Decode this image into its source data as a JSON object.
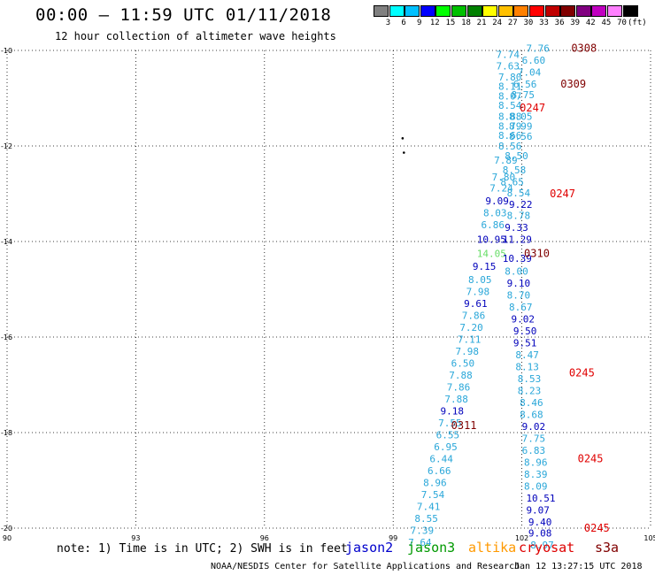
{
  "header": {
    "title": "00:00 – 11:59 UTC 01/11/2018",
    "subtitle": "12 hour collection of altimeter wave heights"
  },
  "legend": {
    "unit_label": "(ft)",
    "bins": [
      {
        "label": "3",
        "color": "#808080"
      },
      {
        "label": "6",
        "color": "#00ffff"
      },
      {
        "label": "9",
        "color": "#00c0ff"
      },
      {
        "label": "12",
        "color": "#0000ff"
      },
      {
        "label": "15",
        "color": "#00ff00"
      },
      {
        "label": "18",
        "color": "#00c000"
      },
      {
        "label": "21",
        "color": "#008000"
      },
      {
        "label": "24",
        "color": "#ffff00"
      },
      {
        "label": "27",
        "color": "#ffc000"
      },
      {
        "label": "30",
        "color": "#ff8000"
      },
      {
        "label": "33",
        "color": "#ff0000"
      },
      {
        "label": "36",
        "color": "#c00000"
      },
      {
        "label": "39",
        "color": "#800000"
      },
      {
        "label": "42",
        "color": "#800080"
      },
      {
        "label": "45",
        "color": "#c000c0"
      },
      {
        "label": "70",
        "color": "#ff80ff"
      },
      {
        "label": "",
        "color": "#000000"
      }
    ]
  },
  "footer": {
    "note": "note: 1) Time is in UTC; 2) SWH is in feet",
    "satellites": [
      {
        "name": "jason2",
        "color": "#0000cc"
      },
      {
        "name": "jason3",
        "color": "#009900"
      },
      {
        "name": "altika",
        "color": "#ff9900"
      },
      {
        "name": "cryosat",
        "color": "#dd0000"
      },
      {
        "name": "s3a",
        "color": "#800000"
      }
    ],
    "credit": "NOAA/NESDIS Center for Satellite Applications and Research",
    "timestamp": "Jan 12 13:27:15 UTC 2018"
  },
  "chart_data": {
    "type": "scatter",
    "xlim": [
      90,
      105
    ],
    "ylim": [
      -20,
      -10
    ],
    "x_ticks": [
      "90",
      "93",
      "96",
      "99",
      "102",
      "105"
    ],
    "y_ticks": [
      "-10",
      "-12",
      "-14",
      "-16",
      "-18",
      "-20"
    ],
    "grid": true,
    "colors": {
      "c": "#2aa7d9",
      "b": "#0000bb",
      "g": "#66dd66",
      "r": "#e00000",
      "d": "#800000",
      "k": "#000000"
    },
    "land_points": [
      [
        99.22,
        -11.84
      ],
      [
        99.25,
        -12.14
      ]
    ],
    "track_a": [
      [
        "7.74",
        -10.08,
        101.4,
        "c"
      ],
      [
        "7.63",
        -10.32,
        101.4,
        "c"
      ],
      [
        "7.80",
        -10.56,
        101.45,
        "c"
      ],
      [
        "8.11",
        -10.75,
        101.45,
        "c"
      ],
      [
        "8.07",
        -10.95,
        101.45,
        "c"
      ],
      [
        "8.54",
        -11.15,
        101.45,
        "c"
      ],
      [
        "8.88",
        -11.38,
        101.45,
        "c"
      ],
      [
        "8.79",
        -11.58,
        101.45,
        "c"
      ],
      [
        "8.66",
        -11.78,
        101.45,
        "c"
      ],
      [
        "8.56",
        -12.0,
        101.45,
        "c"
      ],
      [
        "7.89",
        -12.3,
        101.35,
        "c"
      ],
      [
        "7.80",
        -12.65,
        101.3,
        "c"
      ],
      [
        "7.24",
        -12.88,
        101.25,
        "c"
      ],
      [
        "9.09",
        -13.15,
        101.15,
        "b"
      ],
      [
        "8.03",
        -13.4,
        101.1,
        "c"
      ],
      [
        "6.86",
        -13.65,
        101.05,
        "c"
      ],
      [
        "10.95",
        -13.95,
        100.95,
        "b"
      ],
      [
        "14.05",
        -14.25,
        100.95,
        "g"
      ],
      [
        "9.15",
        -14.52,
        100.85,
        "b"
      ],
      [
        "8.05",
        -14.8,
        100.75,
        "c"
      ],
      [
        "7.98",
        -15.05,
        100.7,
        "c"
      ],
      [
        "9.61",
        -15.3,
        100.65,
        "b"
      ],
      [
        "7.86",
        -15.55,
        100.6,
        "c"
      ],
      [
        "7.20",
        -15.8,
        100.55,
        "c"
      ],
      [
        "7.11",
        -16.05,
        100.5,
        "c"
      ],
      [
        "7.98",
        -16.3,
        100.45,
        "c"
      ],
      [
        "6.50",
        -16.55,
        100.35,
        "c"
      ],
      [
        "7.88",
        -16.8,
        100.3,
        "c"
      ],
      [
        "7.86",
        -17.05,
        100.25,
        "c"
      ],
      [
        "7.88",
        -17.3,
        100.2,
        "c"
      ],
      [
        "9.18",
        -17.55,
        100.1,
        "b"
      ],
      [
        "7.55",
        -17.8,
        100.05,
        "c"
      ],
      [
        "6.55",
        -18.05,
        100.0,
        "c"
      ],
      [
        "6.95",
        -18.3,
        99.95,
        "c"
      ],
      [
        "6.44",
        -18.55,
        99.85,
        "c"
      ],
      [
        "6.66",
        -18.8,
        99.8,
        "c"
      ],
      [
        "8.96",
        -19.05,
        99.7,
        "c"
      ],
      [
        "7.54",
        -19.3,
        99.65,
        "c"
      ],
      [
        "7.41",
        -19.55,
        99.55,
        "c"
      ],
      [
        "8.55",
        -19.8,
        99.5,
        "c"
      ],
      [
        "7.39",
        -20.05,
        99.4,
        "c"
      ],
      [
        "7.64",
        -20.3,
        99.35,
        "c"
      ]
    ],
    "track_b": [
      [
        "7.76",
        -9.95,
        102.1,
        "c"
      ],
      [
        "6.60",
        -10.2,
        102.0,
        "c"
      ],
      [
        "7.04",
        -10.45,
        101.9,
        "c"
      ],
      [
        "6.56",
        -10.7,
        101.8,
        "c"
      ],
      [
        "8.75",
        -10.93,
        101.75,
        "c"
      ],
      [
        "8.05",
        -11.38,
        101.7,
        "c"
      ],
      [
        "8.99",
        -11.58,
        101.7,
        "c"
      ],
      [
        "8.56",
        -11.8,
        101.7,
        "c"
      ],
      [
        "8.50",
        -12.2,
        101.6,
        "c"
      ],
      [
        "8.58",
        -12.5,
        101.55,
        "c"
      ],
      [
        "8.65",
        -12.75,
        101.5,
        "c"
      ],
      [
        "8.54",
        -12.98,
        101.65,
        "c"
      ],
      [
        "9.22",
        -13.22,
        101.7,
        "b"
      ],
      [
        "8.78",
        -13.45,
        101.65,
        "c"
      ],
      [
        "9.33",
        -13.7,
        101.6,
        "b"
      ],
      [
        "11.29",
        -13.95,
        101.55,
        "b"
      ],
      [
        "10.39",
        -14.35,
        101.55,
        "b"
      ],
      [
        "8.00",
        -14.62,
        101.6,
        "c"
      ],
      [
        "9.10",
        -14.87,
        101.65,
        "b"
      ],
      [
        "8.70",
        -15.12,
        101.65,
        "c"
      ],
      [
        "8.67",
        -15.37,
        101.7,
        "c"
      ],
      [
        "9.02",
        -15.62,
        101.75,
        "b"
      ],
      [
        "9.50",
        -15.87,
        101.8,
        "b"
      ],
      [
        "9.51",
        -16.12,
        101.8,
        "b"
      ],
      [
        "8.47",
        -16.37,
        101.85,
        "c"
      ],
      [
        "8.13",
        -16.62,
        101.85,
        "c"
      ],
      [
        "8.53",
        -16.87,
        101.9,
        "c"
      ],
      [
        "8.23",
        -17.12,
        101.9,
        "c"
      ],
      [
        "8.46",
        -17.37,
        101.95,
        "c"
      ],
      [
        "8.68",
        -17.62,
        101.95,
        "c"
      ],
      [
        "9.02",
        -17.87,
        102.0,
        "b"
      ],
      [
        "7.75",
        -18.12,
        102.0,
        "c"
      ],
      [
        "6.83",
        -18.37,
        102.0,
        "c"
      ],
      [
        "8.96",
        -18.62,
        102.05,
        "c"
      ],
      [
        "8.39",
        -18.87,
        102.05,
        "c"
      ],
      [
        "8.09",
        -19.12,
        102.05,
        "c"
      ],
      [
        "10.51",
        -19.37,
        102.1,
        "b"
      ],
      [
        "9.07",
        -19.62,
        102.1,
        "b"
      ],
      [
        "9.40",
        -19.87,
        102.15,
        "b"
      ],
      [
        "9.08",
        -20.1,
        102.15,
        "b"
      ],
      [
        "8.97",
        -20.35,
        102.2,
        "c"
      ]
    ],
    "time_labels": [
      [
        "0308",
        -9.95,
        103.15,
        "d"
      ],
      [
        "0309",
        -10.7,
        102.9,
        "d"
      ],
      [
        "0247",
        -11.2,
        101.95,
        "r"
      ],
      [
        "0247",
        -13.0,
        102.65,
        "r"
      ],
      [
        "0310",
        -14.25,
        102.05,
        "d"
      ],
      [
        "0245",
        -16.75,
        103.1,
        "r"
      ],
      [
        "0311",
        -17.85,
        100.35,
        "d"
      ],
      [
        "0245",
        -18.55,
        103.3,
        "r"
      ],
      [
        "0245",
        -20.0,
        103.45,
        "r"
      ]
    ]
  }
}
